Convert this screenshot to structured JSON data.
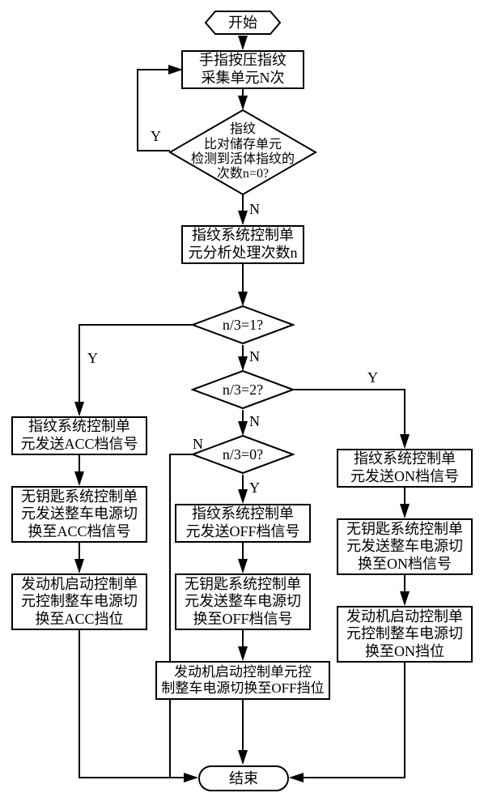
{
  "colors": {
    "stroke": "#000000",
    "bg": "#ffffff",
    "text": "#000000"
  },
  "font": {
    "family": "SimSun",
    "size_pt": 18
  },
  "start": "开始",
  "end": "结束",
  "step_press": "手指按压指纹\n采集单元N次",
  "dec_n0": "指纹\n比对储存单元\n检测到活体指纹的\n次数n=0?",
  "step_analyze": "指纹系统控制单\n元分析处理次数n",
  "dec_n3_1": "n/3=1?",
  "dec_n3_2": "n/3=2?",
  "dec_n3_0": "n/3=0?",
  "left1": "指纹系统控制单\n元发送ACC档信号",
  "left2": "无钥匙系统控制单\n元发送整车电源切\n换至ACC档信号",
  "left3": "发动机启动控制单\n元控制整车电源切\n换至ACC挡位",
  "mid1": "指纹系统控制单\n元发送OFF档信号",
  "mid2": "无钥匙系统控制单\n元发送整车电源切\n换至OFF档信号",
  "mid3": "发动机启动控制单元控\n制整车电源切换至OFF挡位",
  "right1": "指纹系统控制单\n元发送ON档信号",
  "right2": "无钥匙系统控制单\n元发送整车电源切\n换至ON档信号",
  "right3": "发动机启动控制单\n元控制整车电源切\n换至ON挡位",
  "Y": "Y",
  "N": "N"
}
